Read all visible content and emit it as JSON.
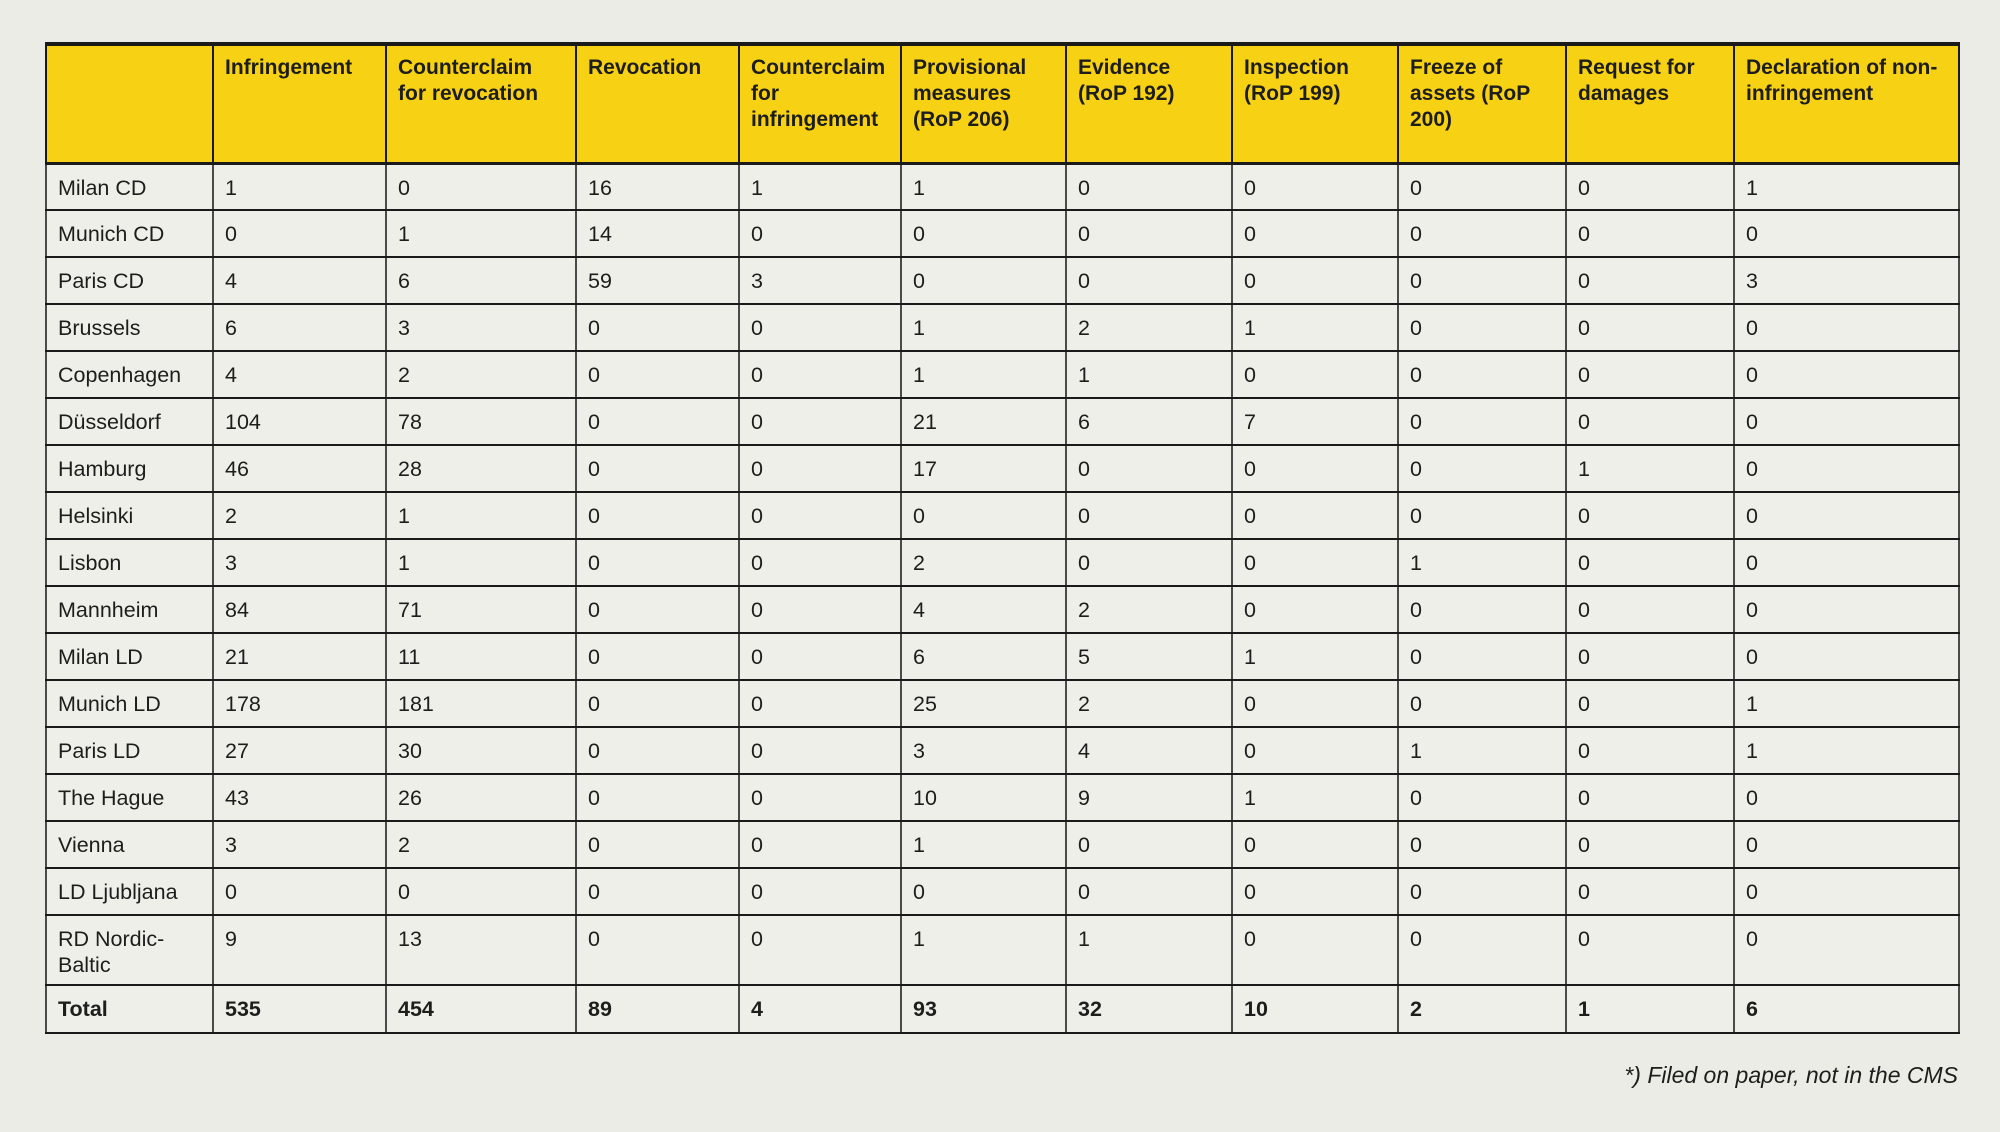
{
  "chart_data": {
    "type": "table",
    "columns": [
      "",
      "Infringement",
      "Counterclaim for revocation",
      "Revocation",
      "Counterclaim for infringement",
      "Provisional measures (RoP 206)",
      "Evidence (RoP 192)",
      "Inspection (RoP 199)",
      "Freeze of assets (RoP 200)",
      "Request for damages",
      "Declaration of non-infringement"
    ],
    "rows": [
      {
        "label": "Milan CD",
        "values": [
          1,
          0,
          16,
          1,
          1,
          0,
          0,
          0,
          0,
          1
        ]
      },
      {
        "label": "Munich CD",
        "values": [
          0,
          1,
          14,
          0,
          0,
          0,
          0,
          0,
          0,
          0
        ]
      },
      {
        "label": "Paris CD",
        "values": [
          4,
          6,
          59,
          3,
          0,
          0,
          0,
          0,
          0,
          3
        ]
      },
      {
        "label": "Brussels",
        "values": [
          6,
          3,
          0,
          0,
          1,
          2,
          1,
          0,
          0,
          0
        ]
      },
      {
        "label": "Copenhagen",
        "values": [
          4,
          2,
          0,
          0,
          1,
          1,
          0,
          0,
          0,
          0
        ]
      },
      {
        "label": "Düsseldorf",
        "values": [
          104,
          78,
          0,
          0,
          21,
          6,
          7,
          0,
          0,
          0
        ]
      },
      {
        "label": "Hamburg",
        "values": [
          46,
          28,
          0,
          0,
          17,
          0,
          0,
          0,
          1,
          0
        ]
      },
      {
        "label": "Helsinki",
        "values": [
          2,
          1,
          0,
          0,
          0,
          0,
          0,
          0,
          0,
          0
        ]
      },
      {
        "label": "Lisbon",
        "values": [
          3,
          1,
          0,
          0,
          2,
          0,
          0,
          1,
          0,
          0
        ]
      },
      {
        "label": "Mannheim",
        "values": [
          84,
          71,
          0,
          0,
          4,
          2,
          0,
          0,
          0,
          0
        ]
      },
      {
        "label": "Milan LD",
        "values": [
          21,
          11,
          0,
          0,
          6,
          5,
          1,
          0,
          0,
          0
        ]
      },
      {
        "label": "Munich LD",
        "values": [
          178,
          181,
          0,
          0,
          25,
          2,
          0,
          0,
          0,
          1
        ]
      },
      {
        "label": "Paris LD",
        "values": [
          27,
          30,
          0,
          0,
          3,
          4,
          0,
          1,
          0,
          1
        ]
      },
      {
        "label": "The Hague",
        "values": [
          43,
          26,
          0,
          0,
          10,
          9,
          1,
          0,
          0,
          0
        ]
      },
      {
        "label": "Vienna",
        "values": [
          3,
          2,
          0,
          0,
          1,
          0,
          0,
          0,
          0,
          0
        ]
      },
      {
        "label": "LD Ljubljana",
        "values": [
          0,
          0,
          0,
          0,
          0,
          0,
          0,
          0,
          0,
          0
        ]
      },
      {
        "label": "RD Nordic-Baltic",
        "values": [
          9,
          13,
          0,
          0,
          1,
          1,
          0,
          0,
          0,
          0
        ]
      }
    ],
    "total_row": {
      "label": "Total",
      "values": [
        535,
        454,
        89,
        4,
        93,
        32,
        10,
        2,
        1,
        6
      ]
    },
    "footnote": "*) Filed on paper, not in the CMS",
    "legend_position": "none",
    "grid": true
  },
  "colors": {
    "header_bg": "#F7D114",
    "page_bg": "#ECECE7",
    "cell_bg": "#EFEFEA",
    "border_dark": "#1A1A1A",
    "text": "#1D1D1B"
  }
}
